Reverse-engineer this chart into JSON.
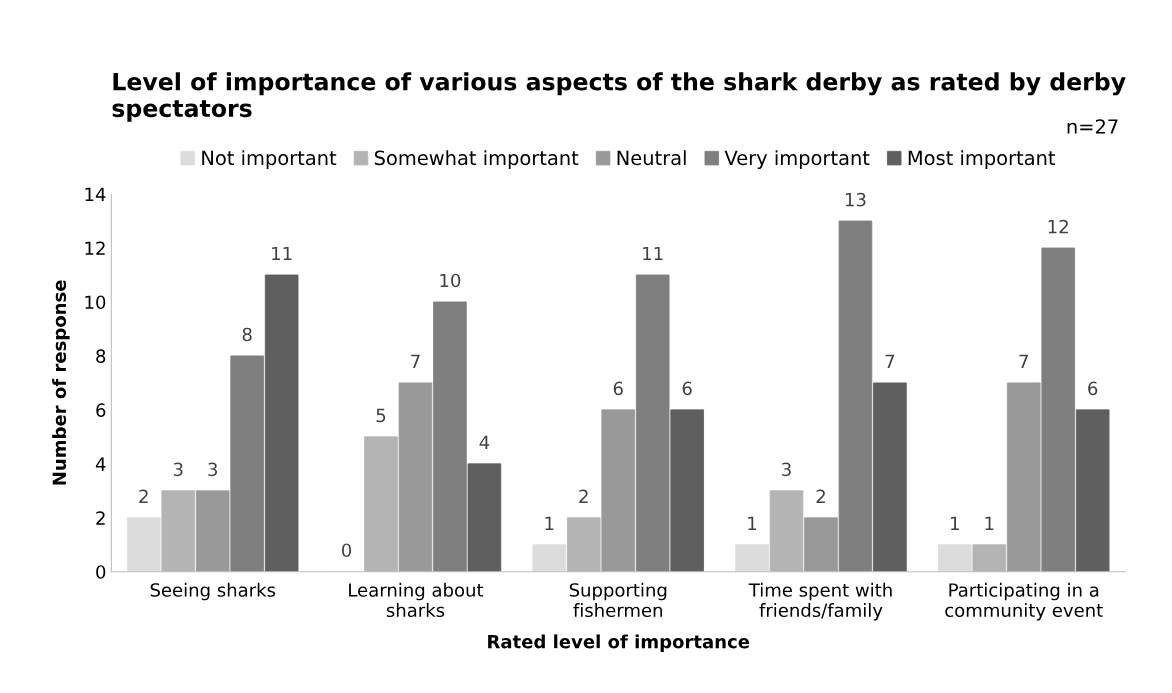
{
  "chart_data": {
    "type": "bar",
    "title": "Level of importance of various aspects of the shark derby as rated by derby spectators",
    "xlabel": "Rated level of importance",
    "ylabel": "Number of response",
    "annotations": [
      "n=27"
    ],
    "categories": [
      "Seeing sharks",
      "Learning about\nsharks",
      "Supporting\nfishermen",
      "Time spent with\nfriends/family",
      "Participating in a\ncommunity event"
    ],
    "series": [
      {
        "name": "Not important",
        "color": "#dcdcdc",
        "values": [
          2,
          0,
          1,
          1,
          1
        ]
      },
      {
        "name": "Somewhat important",
        "color": "#b4b4b4",
        "values": [
          3,
          5,
          2,
          3,
          1
        ]
      },
      {
        "name": "Neutral",
        "color": "#999999",
        "values": [
          3,
          7,
          6,
          2,
          7
        ]
      },
      {
        "name": "Very important",
        "color": "#7f7f7f",
        "values": [
          8,
          10,
          11,
          13,
          12
        ]
      },
      {
        "name": "Most important",
        "color": "#5f5f5f",
        "values": [
          11,
          4,
          6,
          7,
          6
        ]
      }
    ],
    "ylim": [
      0,
      14
    ],
    "yticks": [
      0,
      2,
      4,
      6,
      8,
      10,
      12,
      14
    ],
    "data_labels": true,
    "legend": "top",
    "grid": false
  }
}
